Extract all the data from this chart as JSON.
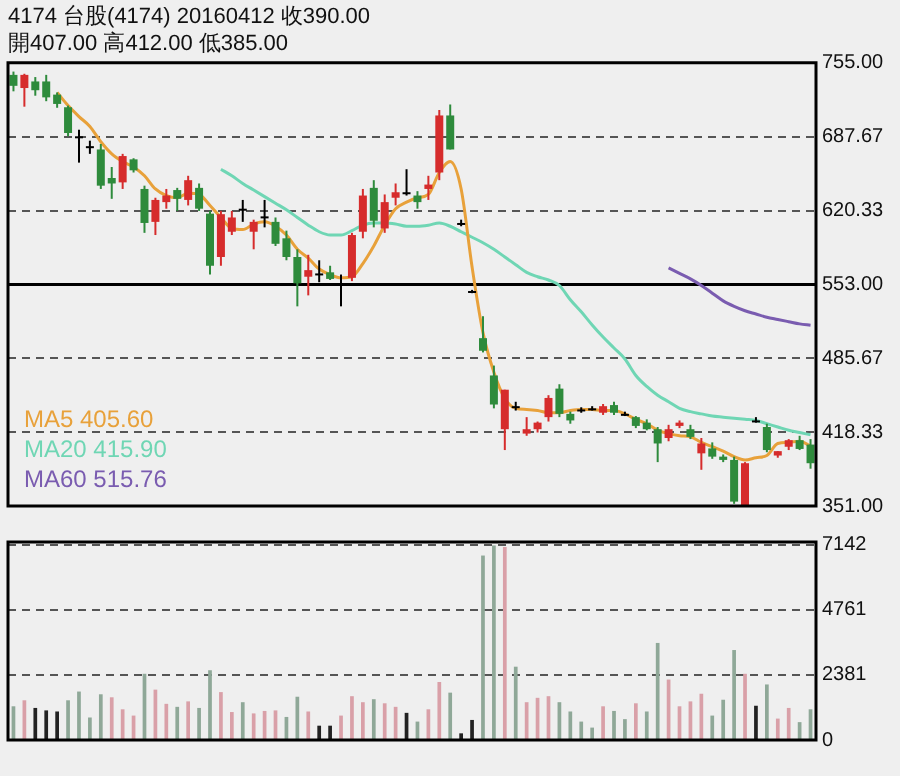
{
  "chart_data": [
    {
      "type": "candlestick",
      "title": "4174 台股(4174) 20160412 收390.00",
      "subtitle": "開407.00 高412.00 低385.00",
      "categories": [
        null,
        null,
        null,
        null,
        null,
        null,
        null,
        null,
        null,
        null,
        null,
        null,
        null,
        null,
        null,
        null,
        null,
        null,
        null,
        null,
        null,
        null,
        null,
        null,
        null,
        null,
        null,
        null,
        null,
        null,
        null,
        null,
        null,
        null,
        null,
        null,
        null,
        null,
        null,
        null,
        null,
        null,
        null,
        null,
        null,
        null,
        null,
        null,
        null,
        null,
        null,
        null,
        null,
        null,
        null,
        null,
        null,
        null,
        null,
        null,
        null,
        null,
        null,
        null,
        null,
        null,
        null,
        null,
        null,
        null,
        null,
        null,
        null,
        null
      ],
      "ohlc": [
        [
          744,
          747,
          729,
          734
        ],
        [
          732,
          745,
          715,
          744
        ],
        [
          738,
          742,
          725,
          730
        ],
        [
          738,
          744,
          720,
          723.5
        ],
        [
          726,
          728,
          714,
          717.5
        ],
        [
          714.5,
          716,
          688,
          691
        ],
        [
          688,
          694,
          664,
          687
        ],
        [
          679,
          684,
          672,
          678
        ],
        [
          676,
          681,
          640,
          643
        ],
        [
          650,
          660,
          631,
          645
        ],
        [
          646,
          672,
          640,
          670
        ],
        [
          667,
          668,
          655,
          657
        ],
        [
          640,
          643,
          600,
          609
        ],
        [
          610,
          632,
          598,
          630
        ],
        [
          628,
          640,
          622,
          634
        ],
        [
          639,
          641,
          620,
          631
        ],
        [
          630,
          652,
          625,
          648
        ],
        [
          641,
          645,
          620,
          622
        ],
        [
          617.5,
          620,
          562,
          570
        ],
        [
          578,
          620,
          570,
          617
        ],
        [
          601,
          620,
          598,
          614
        ],
        [
          622,
          630,
          610,
          622
        ],
        [
          601,
          612,
          585,
          610
        ],
        [
          615,
          630,
          605,
          614
        ],
        [
          610,
          614,
          588,
          590
        ],
        [
          595,
          602,
          575,
          578
        ],
        [
          578,
          585,
          533,
          554
        ],
        [
          560,
          580,
          543,
          566
        ],
        [
          563,
          575,
          555,
          563
        ],
        [
          564,
          570,
          557,
          558
        ],
        [
          554,
          562,
          533,
          554
        ],
        [
          559,
          600,
          556,
          598
        ],
        [
          601,
          640,
          595,
          634
        ],
        [
          641,
          648,
          605,
          611
        ],
        [
          604,
          635,
          600,
          628
        ],
        [
          632,
          645,
          625,
          637
        ],
        [
          637,
          658,
          634,
          637
        ],
        [
          634,
          638,
          622,
          628
        ],
        [
          640,
          652,
          630,
          644
        ],
        [
          655,
          712,
          648,
          707
        ],
        [
          707,
          717,
          676,
          676
        ],
        [
          609,
          612,
          606,
          609
        ],
        [
          547,
          548,
          545,
          547
        ],
        [
          504,
          524,
          491,
          492.5
        ],
        [
          470,
          479,
          440,
          443.5
        ],
        [
          421,
          457,
          402,
          457
        ],
        [
          442,
          446,
          438,
          441
        ],
        [
          417,
          432,
          415,
          421
        ],
        [
          421,
          428,
          418,
          427
        ],
        [
          432,
          452,
          428,
          449.5
        ],
        [
          458,
          462,
          432,
          435
        ],
        [
          435,
          437,
          426,
          429
        ],
        [
          439,
          441,
          436,
          439
        ],
        [
          440,
          442,
          438,
          440
        ],
        [
          436,
          444,
          434,
          442
        ],
        [
          443,
          446,
          434,
          436
        ],
        [
          435,
          437,
          433,
          435
        ],
        [
          432,
          433,
          422,
          424
        ],
        [
          427,
          430,
          420,
          421
        ],
        [
          421,
          423,
          391,
          408
        ],
        [
          413,
          425,
          410,
          421
        ],
        [
          424,
          429,
          422,
          427
        ],
        [
          421,
          425,
          412,
          414
        ],
        [
          399,
          413,
          384,
          408
        ],
        [
          403.5,
          409,
          394,
          396
        ],
        [
          396,
          398,
          391,
          393
        ],
        [
          393,
          396,
          353,
          355
        ],
        [
          351,
          391,
          351,
          390
        ],
        [
          429,
          432,
          427,
          429
        ],
        [
          423,
          426,
          400,
          402
        ],
        [
          397,
          401,
          395,
          401
        ],
        [
          405,
          412,
          402,
          411
        ],
        [
          411,
          415,
          402,
          403
        ],
        [
          407,
          412,
          385,
          390
        ]
      ],
      "colors": [
        "#2e8b3c",
        "#d62c2c",
        "#2e8b3c",
        "#2e8b3c",
        "#2e8b3c",
        "#2e8b3c",
        "#000000",
        "#000000",
        "#2e8b3c",
        "#2e8b3c",
        "#d62c2c",
        "#2e8b3c",
        "#2e8b3c",
        "#d62c2c",
        "#d62c2c",
        "#2e8b3c",
        "#d62c2c",
        "#2e8b3c",
        "#2e8b3c",
        "#d62c2c",
        "#d62c2c",
        "#000000",
        "#d62c2c",
        "#000000",
        "#2e8b3c",
        "#2e8b3c",
        "#2e8b3c",
        "#d62c2c",
        "#000000",
        "#2e8b3c",
        "#000000",
        "#d62c2c",
        "#d62c2c",
        "#2e8b3c",
        "#d62c2c",
        "#d62c2c",
        "#000000",
        "#2e8b3c",
        "#d62c2c",
        "#d62c2c",
        "#2e8b3c",
        "#000000",
        "#000000",
        "#2e8b3c",
        "#2e8b3c",
        "#d62c2c",
        "#000000",
        "#d62c2c",
        "#d62c2c",
        "#d62c2c",
        "#2e8b3c",
        "#2e8b3c",
        "#000000",
        "#000000",
        "#d62c2c",
        "#2e8b3c",
        "#000000",
        "#2e8b3c",
        "#2e8b3c",
        "#2e8b3c",
        "#d62c2c",
        "#d62c2c",
        "#2e8b3c",
        "#d62c2c",
        "#2e8b3c",
        "#2e8b3c",
        "#2e8b3c",
        "#d62c2c",
        "#000000",
        "#2e8b3c",
        "#d62c2c",
        "#d62c2c",
        "#2e8b3c",
        "#2e8b3c"
      ],
      "series": [
        {
          "name": "MA5 405.60",
          "type": "line",
          "color": "#e8a13a",
          "values": [
            null,
            null,
            null,
            null,
            728,
            716,
            706,
            697,
            683,
            672,
            665,
            660,
            652,
            640,
            634,
            632,
            636,
            635,
            625,
            614,
            604,
            603,
            608,
            610,
            606,
            598,
            585,
            577,
            567,
            562,
            559,
            560,
            572,
            588,
            607,
            622,
            628,
            632,
            635,
            655,
            665,
            640,
            569,
            509,
            473,
            449,
            440,
            439,
            438,
            436,
            436,
            438,
            439,
            439,
            438,
            438,
            435,
            430,
            426,
            420,
            417,
            415,
            414,
            409,
            405,
            401,
            396,
            393,
            395,
            397,
            408,
            409,
            410,
            405.6
          ]
        },
        {
          "name": "MA20 415.90",
          "type": "line",
          "color": "#6fd6b4",
          "values": [
            null,
            null,
            null,
            null,
            null,
            null,
            null,
            null,
            null,
            null,
            null,
            null,
            null,
            null,
            null,
            null,
            null,
            null,
            null,
            658,
            652,
            645,
            639,
            633,
            627,
            621,
            614,
            607,
            601,
            598,
            598,
            602,
            607,
            609,
            609,
            608,
            606,
            606,
            607,
            609,
            606,
            601,
            596,
            591,
            585,
            578,
            571,
            564,
            560,
            557,
            552,
            539,
            528,
            516,
            505,
            495,
            485,
            470,
            460,
            452,
            446,
            440,
            437,
            435,
            433,
            432,
            431,
            430,
            429,
            426,
            423,
            420,
            418,
            415.9
          ]
        },
        {
          "name": "MA60 515.76",
          "type": "line",
          "color": "#7a5cb0",
          "values": [
            null,
            null,
            null,
            null,
            null,
            null,
            null,
            null,
            null,
            null,
            null,
            null,
            null,
            null,
            null,
            null,
            null,
            null,
            null,
            null,
            null,
            null,
            null,
            null,
            null,
            null,
            null,
            null,
            null,
            null,
            null,
            null,
            null,
            null,
            null,
            null,
            null,
            null,
            null,
            null,
            null,
            null,
            null,
            null,
            null,
            null,
            null,
            null,
            null,
            null,
            null,
            null,
            null,
            null,
            null,
            null,
            null,
            null,
            null,
            null,
            568,
            563,
            558,
            552,
            545,
            538,
            533,
            529,
            526,
            523,
            521,
            519,
            517,
            515.76
          ]
        }
      ],
      "ylim": [
        351,
        755
      ],
      "yticks": [
        {
          "value": 351,
          "label": "351.00"
        },
        {
          "value": 418.33,
          "label": "418.33"
        },
        {
          "value": 485.67,
          "label": "485.67"
        },
        {
          "value": 553,
          "label": "553.00"
        },
        {
          "value": 620.33,
          "label": "620.33"
        },
        {
          "value": 687.67,
          "label": "687.67"
        },
        {
          "value": 755,
          "label": "755.00"
        }
      ],
      "grid": "y",
      "ref_lines": [
        {
          "axis": "y",
          "value": 553,
          "color": "#000000"
        }
      ],
      "legend": "bottom left",
      "tick_labels": "y"
    },
    {
      "type": "bar",
      "categories": [
        null,
        null,
        null,
        null,
        null,
        null,
        null,
        null,
        null,
        null,
        null,
        null,
        null,
        null,
        null,
        null,
        null,
        null,
        null,
        null,
        null,
        null,
        null,
        null,
        null,
        null,
        null,
        null,
        null,
        null,
        null,
        null,
        null,
        null,
        null,
        null,
        null,
        null,
        null,
        null,
        null,
        null,
        null,
        null,
        null,
        null,
        null,
        null,
        null,
        null,
        null,
        null,
        null,
        null,
        null,
        null,
        null,
        null,
        null,
        null,
        null,
        null,
        null,
        null,
        null,
        null,
        null,
        null,
        null,
        null,
        null,
        null,
        null,
        null
      ],
      "values": [
        1210,
        1430,
        1150,
        1060,
        1020,
        1430,
        1750,
        800,
        1650,
        1540,
        1100,
        870,
        2400,
        1820,
        1300,
        1190,
        1390,
        1150,
        2530,
        1730,
        1000,
        1360,
        950,
        1040,
        1060,
        820,
        1560,
        1020,
        500,
        500,
        870,
        1580,
        1360,
        1470,
        1320,
        1190,
        970,
        650,
        1100,
        2100,
        1710,
        220,
        710,
        6730,
        7100,
        7040,
        2660,
        1360,
        1520,
        1580,
        1360,
        1020,
        650,
        430,
        1210,
        1040,
        740,
        1320,
        1020,
        3530,
        2190,
        1210,
        1390,
        1670,
        870,
        1450,
        3270,
        2400,
        1230,
        2010,
        760,
        1150,
        630,
        1100
      ],
      "colors": [
        "#8fa898",
        "#d9a0a8",
        "#222222",
        "#222222",
        "#222222",
        "#8fa898",
        "#8fa898",
        "#8fa898",
        "#8fa898",
        "#d9a0a8",
        "#d9a0a8",
        "#d9a0a8",
        "#8fa898",
        "#d9a0a8",
        "#d9a0a8",
        "#8fa898",
        "#d9a0a8",
        "#8fa898",
        "#8fa898",
        "#d9a0a8",
        "#d9a0a8",
        "#8fa898",
        "#d9a0a8",
        "#d9a0a8",
        "#d9a0a8",
        "#8fa898",
        "#8fa898",
        "#d9a0a8",
        "#222222",
        "#222222",
        "#d9a0a8",
        "#d9a0a8",
        "#d9a0a8",
        "#8fa898",
        "#d9a0a8",
        "#d9a0a8",
        "#222222",
        "#8fa898",
        "#d9a0a8",
        "#d9a0a8",
        "#8fa898",
        "#222222",
        "#222222",
        "#8fa898",
        "#8fa898",
        "#d9a0a8",
        "#8fa898",
        "#d9a0a8",
        "#d9a0a8",
        "#d9a0a8",
        "#8fa898",
        "#8fa898",
        "#8fa898",
        "#8fa898",
        "#d9a0a8",
        "#8fa898",
        "#8fa898",
        "#d9a0a8",
        "#8fa898",
        "#8fa898",
        "#d9a0a8",
        "#d9a0a8",
        "#d9a0a8",
        "#d9a0a8",
        "#8fa898",
        "#8fa898",
        "#8fa898",
        "#d9a0a8",
        "#222222",
        "#8fa898",
        "#d9a0a8",
        "#d9a0a8",
        "#8fa898",
        "#8fa898"
      ],
      "ylim": [
        0,
        7250
      ],
      "yticks": [
        0,
        2381,
        4761,
        7142
      ],
      "grid": "y",
      "tick_labels": "y"
    }
  ]
}
